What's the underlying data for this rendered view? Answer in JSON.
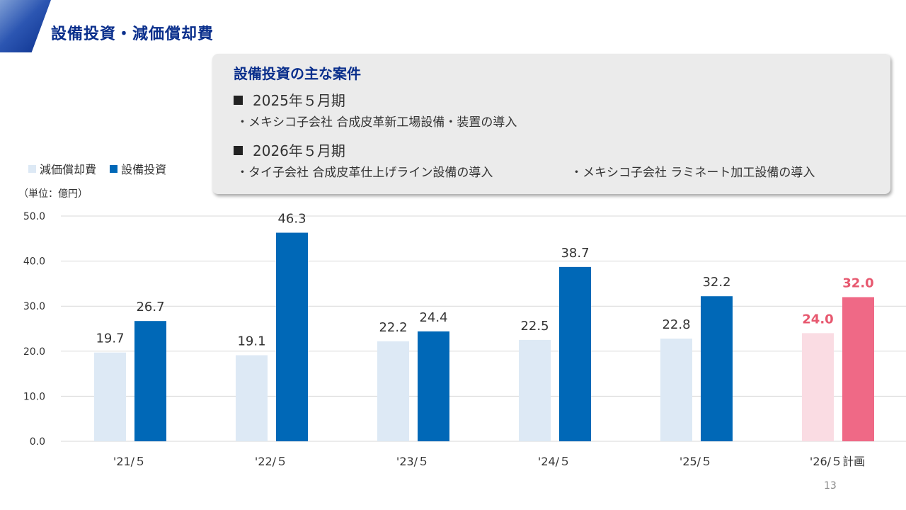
{
  "page": {
    "title": "設備投資・減価償却費",
    "page_number": "13"
  },
  "callout": {
    "title": "設備投資の主な案件",
    "periods": [
      {
        "label": "2025年５月期",
        "items": [
          "・メキシコ子会社 合成皮革新工場設備・装置の導入"
        ]
      },
      {
        "label": "2026年５月期",
        "items": [
          "・タイ子会社 合成皮革仕上げライン設備の導入",
          "・メキシコ子会社 ラミネート加工設備の導入"
        ]
      }
    ]
  },
  "legend": [
    {
      "name": "減価償却費",
      "color": "#dde9f5"
    },
    {
      "name": "設備投資",
      "color": "#0068b7"
    }
  ],
  "unit_label": "（単位：億円）",
  "chart_data": {
    "type": "bar",
    "categories": [
      "'21/５",
      "'22/５",
      "'23/５",
      "'24/５",
      "'25/５",
      "'26/５計画"
    ],
    "series": [
      {
        "name": "減価償却費",
        "values": [
          19.7,
          19.1,
          22.2,
          22.5,
          22.8,
          24.0
        ],
        "color": "#dde9f5",
        "plan_color": "#fadce3"
      },
      {
        "name": "設備投資",
        "values": [
          26.7,
          46.3,
          24.4,
          38.7,
          32.2,
          32.0
        ],
        "color": "#0068b7",
        "plan_color": "#ef6986"
      }
    ],
    "value_labels": [
      [
        "19.7",
        "19.1",
        "22.2",
        "22.5",
        "22.8",
        "24.0"
      ],
      [
        "26.7",
        "46.3",
        "24.4",
        "38.7",
        "32.2",
        "32.0"
      ]
    ],
    "y_tick_labels": [
      "0.0",
      "10.0",
      "20.0",
      "30.0",
      "40.0",
      "50.0"
    ],
    "ylim": [
      0,
      50
    ],
    "y_ticks": [
      0,
      10,
      20,
      30,
      40,
      50
    ],
    "plan_index": 5,
    "plan_label_color": "#e7586f",
    "grid": true,
    "legend_position": "top-left"
  }
}
